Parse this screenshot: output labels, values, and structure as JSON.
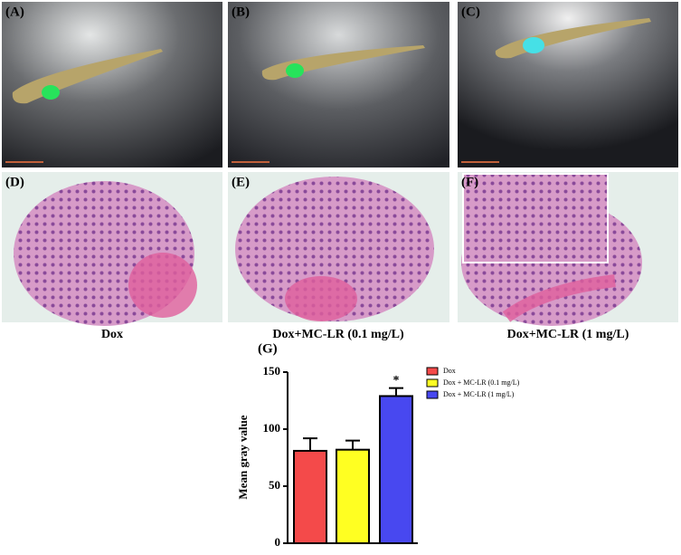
{
  "panels": [
    {
      "label": "(A)"
    },
    {
      "label": "(B)"
    },
    {
      "label": "(C)"
    },
    {
      "label": "(D)"
    },
    {
      "label": "(E)"
    },
    {
      "label": "(F)"
    }
  ],
  "captions": [
    "Dox",
    "Dox+MC-LR (0.1 mg/L)",
    "Dox+MC-LR (1 mg/L)"
  ],
  "chart_data": {
    "type": "bar",
    "panel_label": "(G)",
    "y_label": "Mean gray value",
    "series": [
      {
        "name": "Dox",
        "color": "#f44a4a"
      },
      {
        "name": "Dox + MC-LR (0.1 mg/L)",
        "color": "#ffff22"
      },
      {
        "name": "Dox + MC-LR (1 mg/L)",
        "color": "#4848f0"
      }
    ],
    "values": [
      81,
      82,
      129
    ],
    "errors": [
      11,
      8,
      7
    ],
    "annotations": [
      null,
      null,
      "*"
    ],
    "ylim": [
      0,
      150
    ],
    "yticks": [
      0,
      50,
      100,
      150
    ]
  }
}
